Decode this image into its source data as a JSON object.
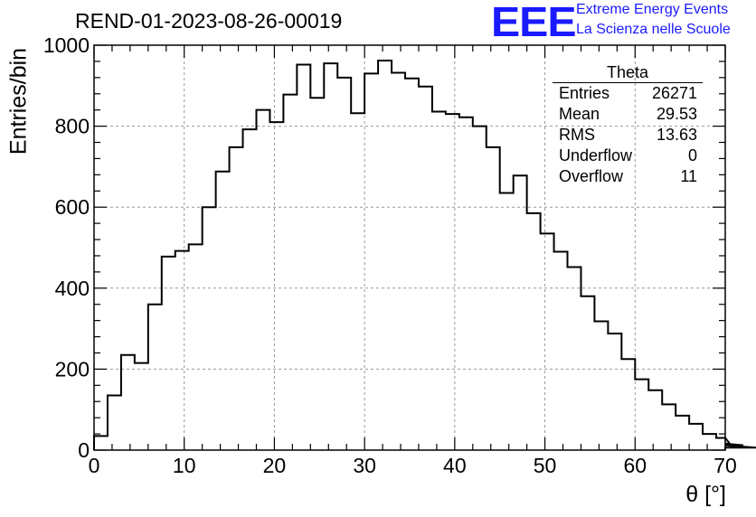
{
  "header": {
    "title": "REND-01-2023-08-26-00019",
    "logo_text": "EEE",
    "logo_line1": "Extreme Energy Events",
    "logo_line2": "La Scienza nelle Scuole"
  },
  "stats": {
    "title": "Theta",
    "rows": [
      {
        "label": "Entries",
        "value": "26271"
      },
      {
        "label": "Mean",
        "value": "29.53"
      },
      {
        "label": "RMS",
        "value": "13.63"
      },
      {
        "label": "Underflow",
        "value": "0"
      },
      {
        "label": "Overflow",
        "value": "11"
      }
    ]
  },
  "colors": {
    "logo": "#1a1aff",
    "line": "#000000",
    "grid": "#999999"
  },
  "chart_data": {
    "type": "bar",
    "style": "step histogram",
    "title": "REND-01-2023-08-26-00019",
    "xlabel": "θ [°]",
    "ylabel": "Entries/bin",
    "xlim": [
      0,
      70
    ],
    "ylim": [
      0,
      1000
    ],
    "bin_width": 1.5,
    "x_ticks": [
      0,
      10,
      20,
      30,
      40,
      50,
      60,
      70
    ],
    "y_ticks": [
      0,
      200,
      400,
      600,
      800,
      1000
    ],
    "grid": true,
    "series": [
      {
        "values": [
          35,
          135,
          235,
          215,
          360,
          478,
          492,
          508,
          600,
          688,
          748,
          792,
          840,
          810,
          878,
          952,
          870,
          955,
          920,
          832,
          930,
          962,
          932,
          918,
          898,
          836,
          830,
          822,
          800,
          748,
          635,
          678,
          585,
          535,
          490,
          452,
          380,
          318,
          288,
          225,
          175,
          148,
          113,
          85,
          65,
          40,
          30,
          16,
          12,
          6
        ]
      }
    ]
  }
}
